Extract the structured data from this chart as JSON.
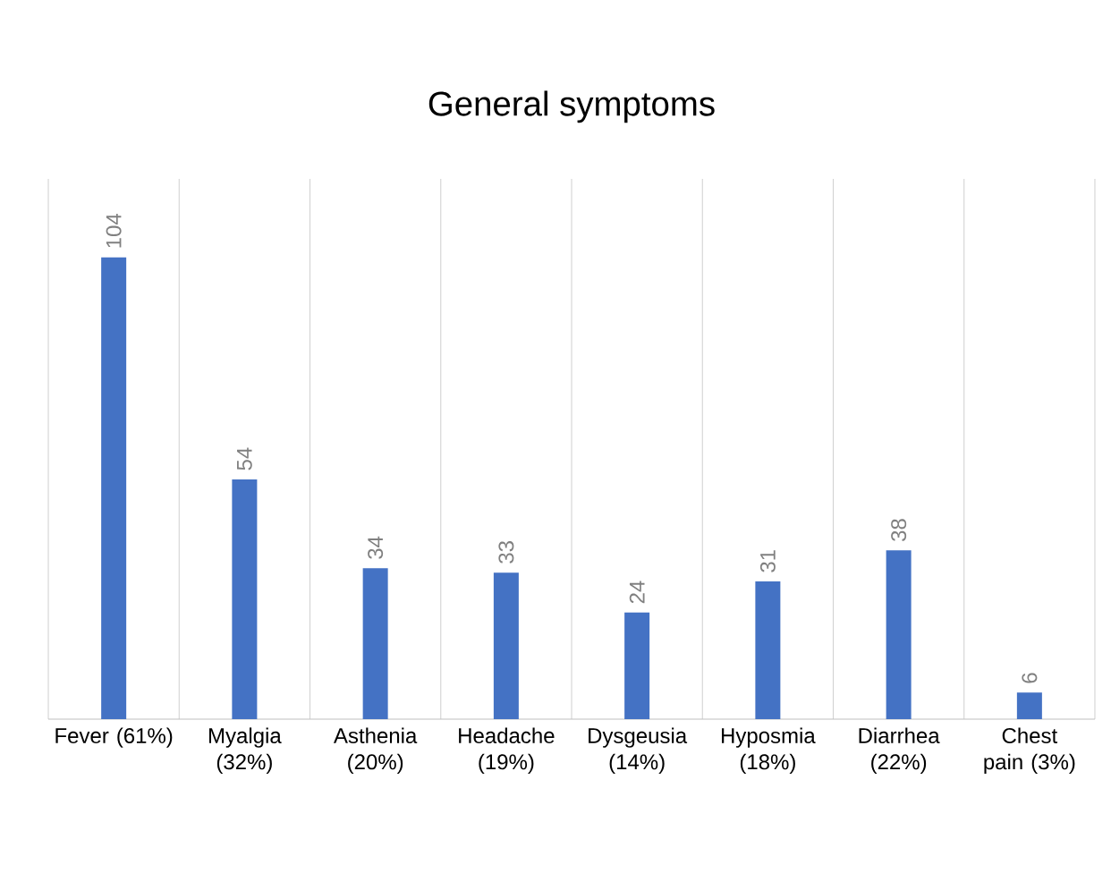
{
  "chart_data": {
    "type": "bar",
    "title": "General symptoms",
    "categories": [
      "Fever (61%)",
      "Myalgia (32%)",
      "Asthenia (20%)",
      "Headache (19%)",
      "Dysgeusia (14%)",
      "Hyposmia (18%)",
      "Diarrhea (22%)",
      "Chest pain (3%)"
    ],
    "values": [
      104,
      54,
      34,
      33,
      24,
      31,
      38,
      6
    ],
    "color": "#4472c4",
    "data_labels": true,
    "grid": "x"
  }
}
